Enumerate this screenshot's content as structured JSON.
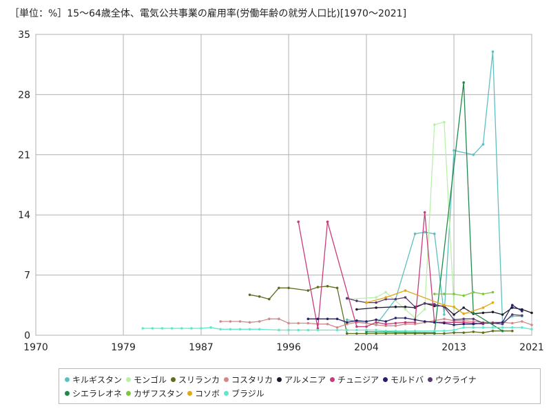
{
  "chart_data": {
    "type": "line",
    "title": "［単位：%］15～64歳全体、電気公共事業の雇用率(労働年齢の就労人口比)[1970～2021]",
    "xlabel": "",
    "ylabel": "",
    "xlim": [
      1970,
      2021
    ],
    "ylim": [
      0,
      35
    ],
    "x_ticks": [
      "1970",
      "1979",
      "1987",
      "1996",
      "2004",
      "2013",
      "2021"
    ],
    "y_ticks": [
      "0",
      "7",
      "14",
      "21",
      "28",
      "35"
    ],
    "grid": true,
    "legend_position": "bottom",
    "series": [
      {
        "name": "キルギスタン",
        "color": "#5fbfbf",
        "points": [
          [
            2002,
            1.8
          ],
          [
            2005,
            1.2
          ],
          [
            2007,
            4.2
          ],
          [
            2009,
            11.8
          ],
          [
            2010,
            12.0
          ],
          [
            2011,
            11.8
          ],
          [
            2012,
            2.4
          ],
          [
            2013,
            21.5
          ],
          [
            2015,
            21.0
          ],
          [
            2016,
            22.2
          ],
          [
            2017,
            33.0
          ],
          [
            2018,
            1.5
          ],
          [
            2019,
            2.2
          ],
          [
            2020,
            2.2
          ]
        ]
      },
      {
        "name": "モンゴル",
        "color": "#b8f0a8",
        "points": [
          [
            2002,
            4.2
          ],
          [
            2005,
            4.4
          ],
          [
            2006,
            5.0
          ],
          [
            2008,
            3.0
          ],
          [
            2009,
            2.0
          ],
          [
            2010,
            3.0
          ],
          [
            2011,
            24.5
          ],
          [
            2012,
            24.8
          ],
          [
            2013,
            3.2
          ],
          [
            2014,
            2.5
          ],
          [
            2016,
            2.6
          ]
        ]
      },
      {
        "name": "スリランカ",
        "color": "#5a6e1e",
        "points": [
          [
            1992,
            4.7
          ],
          [
            1993,
            4.5
          ],
          [
            1994,
            4.2
          ],
          [
            1995,
            5.5
          ],
          [
            1996,
            5.5
          ],
          [
            1998,
            5.2
          ],
          [
            1999,
            5.6
          ],
          [
            2000,
            5.7
          ],
          [
            2001,
            5.5
          ],
          [
            2002,
            0.2
          ],
          [
            2003,
            0.2
          ],
          [
            2004,
            0.2
          ],
          [
            2005,
            0.2
          ],
          [
            2006,
            0.2
          ],
          [
            2007,
            0.2
          ],
          [
            2008,
            0.2
          ],
          [
            2009,
            0.2
          ],
          [
            2010,
            0.2
          ],
          [
            2011,
            0.2
          ],
          [
            2012,
            0.2
          ],
          [
            2013,
            0.3
          ],
          [
            2014,
            0.3
          ],
          [
            2015,
            0.4
          ],
          [
            2016,
            0.3
          ],
          [
            2017,
            0.5
          ],
          [
            2018,
            0.5
          ],
          [
            2019,
            0.5
          ]
        ]
      },
      {
        "name": "コスタリカ",
        "color": "#d08888",
        "points": [
          [
            1989,
            1.6
          ],
          [
            1990,
            1.6
          ],
          [
            1991,
            1.6
          ],
          [
            1992,
            1.5
          ],
          [
            1993,
            1.6
          ],
          [
            1994,
            1.9
          ],
          [
            1995,
            1.9
          ],
          [
            1996,
            1.4
          ],
          [
            1997,
            1.4
          ],
          [
            1998,
            1.4
          ],
          [
            1999,
            1.3
          ],
          [
            2000,
            1.3
          ],
          [
            2001,
            0.9
          ],
          [
            2002,
            1.3
          ],
          [
            2003,
            1.5
          ],
          [
            2004,
            1.4
          ],
          [
            2005,
            1.2
          ],
          [
            2006,
            1.1
          ],
          [
            2007,
            1.1
          ],
          [
            2008,
            1.3
          ],
          [
            2009,
            1.3
          ],
          [
            2010,
            1.5
          ],
          [
            2011,
            1.7
          ],
          [
            2012,
            1.9
          ],
          [
            2013,
            1.7
          ],
          [
            2014,
            1.7
          ],
          [
            2015,
            1.6
          ],
          [
            2016,
            1.5
          ],
          [
            2017,
            1.5
          ],
          [
            2018,
            1.5
          ],
          [
            2019,
            1.4
          ],
          [
            2020,
            1.6
          ],
          [
            2021,
            1.2
          ]
        ]
      },
      {
        "name": "アルメニア",
        "color": "#1a1a2a",
        "points": [
          [
            2003,
            3.0
          ],
          [
            2005,
            3.2
          ],
          [
            2007,
            3.3
          ],
          [
            2008,
            3.3
          ],
          [
            2009,
            3.2
          ],
          [
            2010,
            3.7
          ],
          [
            2011,
            3.4
          ],
          [
            2012,
            3.4
          ],
          [
            2013,
            2.4
          ],
          [
            2014,
            3.2
          ],
          [
            2015,
            2.5
          ],
          [
            2016,
            2.6
          ],
          [
            2017,
            2.7
          ],
          [
            2018,
            2.4
          ],
          [
            2019,
            3.2
          ],
          [
            2020,
            3.0
          ],
          [
            2021,
            2.6
          ]
        ]
      },
      {
        "name": "チュニジア",
        "color": "#c83a7a",
        "points": [
          [
            1997,
            13.2
          ],
          [
            1999,
            0.8
          ],
          [
            2000,
            13.2
          ],
          [
            2003,
            1.0
          ],
          [
            2004,
            1.0
          ],
          [
            2005,
            1.5
          ],
          [
            2006,
            1.3
          ],
          [
            2007,
            1.4
          ],
          [
            2008,
            1.5
          ],
          [
            2009,
            1.5
          ],
          [
            2010,
            14.3
          ],
          [
            2011,
            1.5
          ],
          [
            2012,
            1.5
          ],
          [
            2013,
            1.5
          ],
          [
            2014,
            1.5
          ],
          [
            2015,
            1.4
          ],
          [
            2016,
            1.3
          ]
        ]
      },
      {
        "name": "モルドバ",
        "color": "#24206a",
        "points": [
          [
            1998,
            1.9
          ],
          [
            1999,
            1.9
          ],
          [
            2000,
            1.9
          ],
          [
            2001,
            1.9
          ],
          [
            2002,
            1.5
          ],
          [
            2003,
            1.7
          ],
          [
            2004,
            1.6
          ],
          [
            2005,
            1.8
          ],
          [
            2006,
            1.6
          ],
          [
            2007,
            2.0
          ],
          [
            2008,
            2.0
          ],
          [
            2009,
            1.8
          ],
          [
            2010,
            1.6
          ],
          [
            2011,
            1.5
          ],
          [
            2012,
            1.4
          ],
          [
            2013,
            1.2
          ],
          [
            2014,
            1.3
          ],
          [
            2015,
            1.3
          ],
          [
            2016,
            1.4
          ],
          [
            2017,
            1.4
          ],
          [
            2018,
            1.5
          ],
          [
            2019,
            3.5
          ],
          [
            2020,
            2.8
          ]
        ]
      },
      {
        "name": "ウクライナ",
        "color": "#5a3a6e",
        "points": [
          [
            2002,
            4.3
          ],
          [
            2003,
            4.0
          ],
          [
            2004,
            3.8
          ],
          [
            2005,
            3.8
          ],
          [
            2006,
            4.2
          ],
          [
            2007,
            4.2
          ],
          [
            2008,
            4.4
          ],
          [
            2009,
            3.3
          ],
          [
            2010,
            3.7
          ],
          [
            2011,
            3.6
          ],
          [
            2012,
            3.3
          ],
          [
            2013,
            1.8
          ],
          [
            2014,
            1.9
          ],
          [
            2015,
            1.9
          ],
          [
            2016,
            1.4
          ],
          [
            2017,
            1.4
          ],
          [
            2018,
            1.3
          ],
          [
            2019,
            2.4
          ],
          [
            2020,
            2.3
          ]
        ]
      },
      {
        "name": "シエラレオネ",
        "color": "#1e8a4a",
        "points": [
          [
            2004,
            0.4
          ],
          [
            2011,
            0.3
          ],
          [
            2014,
            29.4
          ],
          [
            2015,
            2.6
          ],
          [
            2018,
            0.5
          ]
        ]
      },
      {
        "name": "カザフスタン",
        "color": "#7ac83a",
        "points": [
          [
            2011,
            4.8
          ],
          [
            2012,
            4.8
          ],
          [
            2013,
            4.8
          ],
          [
            2014,
            4.6
          ],
          [
            2015,
            5.0
          ],
          [
            2016,
            4.8
          ],
          [
            2017,
            5.0
          ]
        ]
      },
      {
        "name": "コソボ",
        "color": "#e0a818",
        "points": [
          [
            2004,
            3.8
          ],
          [
            2006,
            4.4
          ],
          [
            2008,
            5.2
          ],
          [
            2012,
            3.5
          ],
          [
            2013,
            3.3
          ],
          [
            2014,
            2.5
          ],
          [
            2016,
            3.2
          ],
          [
            2017,
            3.8
          ]
        ]
      },
      {
        "name": "ブラジル",
        "color": "#5ee8c8",
        "points": [
          [
            1981,
            0.8
          ],
          [
            1982,
            0.8
          ],
          [
            1983,
            0.8
          ],
          [
            1984,
            0.8
          ],
          [
            1985,
            0.8
          ],
          [
            1986,
            0.8
          ],
          [
            1987,
            0.8
          ],
          [
            1988,
            0.9
          ],
          [
            1989,
            0.7
          ],
          [
            1990,
            0.7
          ],
          [
            1991,
            0.7
          ],
          [
            1992,
            0.7
          ],
          [
            1993,
            0.7
          ],
          [
            1995,
            0.6
          ],
          [
            1996,
            0.6
          ],
          [
            1997,
            0.6
          ],
          [
            1998,
            0.6
          ],
          [
            1999,
            0.6
          ],
          [
            2001,
            0.6
          ],
          [
            2002,
            0.6
          ],
          [
            2003,
            0.6
          ],
          [
            2004,
            0.6
          ],
          [
            2005,
            0.6
          ],
          [
            2006,
            0.5
          ],
          [
            2007,
            0.5
          ],
          [
            2008,
            0.5
          ],
          [
            2009,
            0.5
          ],
          [
            2011,
            0.5
          ],
          [
            2012,
            0.5
          ],
          [
            2013,
            0.6
          ],
          [
            2014,
            0.9
          ],
          [
            2015,
            0.9
          ],
          [
            2016,
            0.9
          ],
          [
            2017,
            0.9
          ],
          [
            2018,
            0.9
          ],
          [
            2019,
            0.9
          ],
          [
            2020,
            0.9
          ],
          [
            2021,
            0.7
          ]
        ]
      }
    ]
  }
}
